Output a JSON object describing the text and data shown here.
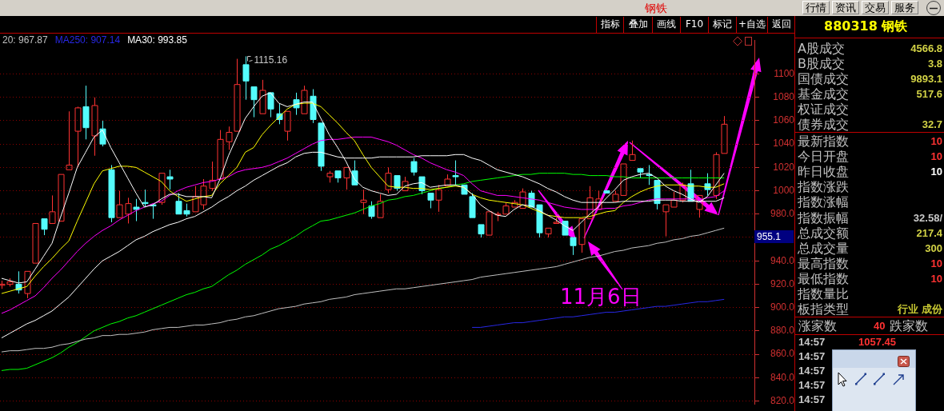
{
  "chart_data": [
    {
      "type": "candlestick",
      "title": "钢铁",
      "categories": [
        null,
        null,
        null,
        null,
        null,
        null,
        null,
        null,
        null,
        null,
        null,
        null,
        null,
        null,
        null,
        null,
        null,
        null,
        null,
        null,
        null,
        null,
        null,
        null,
        null,
        null,
        null,
        null,
        null,
        null,
        null,
        null,
        null,
        null,
        null,
        null,
        null,
        null,
        null,
        null,
        null,
        null,
        null,
        null,
        null,
        null,
        null,
        null,
        null,
        null,
        null,
        null,
        null,
        null,
        null,
        null,
        null,
        null,
        null,
        null,
        null,
        null,
        null,
        null,
        null,
        null,
        null,
        null,
        null,
        null,
        null,
        null,
        null,
        null,
        null,
        null,
        null,
        null,
        null,
        null,
        null,
        null,
        null,
        null,
        null,
        null,
        null
      ],
      "ohlc": [
        [
          919,
          923,
          916,
          920
        ],
        [
          920,
          925,
          918,
          922
        ],
        [
          920,
          931,
          912,
          915
        ],
        [
          912,
          931,
          908,
          931
        ],
        [
          938,
          972,
          938,
          972
        ],
        [
          976,
          976,
          962,
          967
        ],
        [
          972,
          996,
          972,
          982
        ],
        [
          974,
          1014,
          974,
          1014
        ],
        [
          1018,
          1068,
          1018,
          1022
        ],
        [
          1051,
          1072,
          1020,
          1071
        ],
        [
          1072,
          1090,
          1044,
          1054
        ],
        [
          1047,
          1080,
          1030,
          1073
        ],
        [
          1053,
          1060,
          1038,
          1040
        ],
        [
          1018,
          1022,
          973,
          977
        ],
        [
          977,
          1000,
          977,
          988
        ],
        [
          980,
          994,
          972,
          989
        ],
        [
          986,
          993,
          974,
          984
        ],
        [
          990,
          1001,
          986,
          989
        ],
        [
          988,
          988,
          976,
          987
        ],
        [
          990,
          1015,
          988,
          1015
        ],
        [
          1012,
          1018,
          1001,
          1010
        ],
        [
          991,
          998,
          980,
          980
        ],
        [
          983,
          989,
          978,
          980
        ],
        [
          982,
          1004,
          982,
          995
        ],
        [
          988,
          1010,
          984,
          1004
        ],
        [
          1002,
          1025,
          1000,
          1009
        ],
        [
          1010,
          1052,
          1010,
          1044
        ],
        [
          1042,
          1055,
          1035,
          1050
        ],
        [
          1051,
          1113,
          1051,
          1091
        ],
        [
          1108,
          1115.16,
          1078,
          1094
        ],
        [
          1089,
          1089,
          1063,
          1078
        ],
        [
          1066,
          1095,
          1066,
          1086
        ],
        [
          1084,
          1084,
          1063,
          1070
        ],
        [
          1066,
          1075,
          1057,
          1061
        ],
        [
          1051,
          1068,
          1043,
          1068
        ],
        [
          1078,
          1084,
          1065,
          1071
        ],
        [
          1066,
          1090,
          1066,
          1086
        ],
        [
          1081,
          1087,
          1058,
          1061
        ],
        [
          1058,
          1058,
          1017,
          1021
        ],
        [
          1012,
          1017,
          1007,
          1015
        ],
        [
          1017,
          1017,
          1007,
          1011
        ],
        [
          1011,
          1020,
          1001,
          1020
        ],
        [
          1017,
          1026,
          1005,
          1005
        ],
        [
          990,
          1001,
          980,
          992
        ],
        [
          987,
          991,
          976,
          978
        ],
        [
          977,
          997,
          977,
          991
        ],
        [
          1001,
          1020,
          998,
          1015
        ],
        [
          1013,
          1013,
          1000,
          1002
        ],
        [
          1000,
          1012,
          1000,
          1008
        ],
        [
          1025,
          1028,
          1013,
          1016
        ],
        [
          1012,
          1012,
          997,
          1000
        ],
        [
          998,
          998,
          985,
          992
        ],
        [
          992,
          1005,
          982,
          1001
        ],
        [
          1004,
          1014,
          1004,
          1010
        ],
        [
          1013,
          1026,
          1005,
          1012
        ],
        [
          1005,
          1005,
          997,
          997
        ],
        [
          995,
          998,
          977,
          977
        ],
        [
          971,
          971,
          960,
          963
        ],
        [
          962,
          982,
          962,
          982
        ],
        [
          979.5,
          982,
          974,
          980
        ],
        [
          980,
          990,
          980,
          987
        ],
        [
          986,
          992,
          986,
          990
        ],
        [
          985,
          1002,
          985,
          999
        ],
        [
          998,
          1000,
          986,
          986
        ],
        [
          988,
          988,
          960,
          964
        ],
        [
          963,
          968,
          960,
          968
        ],
        [
          972,
          977,
          972,
          973
        ],
        [
          974,
          974,
          962,
          962
        ],
        [
          960,
          960,
          945,
          953
        ],
        [
          954,
          976,
          947,
          976
        ],
        [
          976,
          1004,
          976,
          994
        ],
        [
          984,
          1000,
          984,
          993
        ],
        [
          1000,
          1000,
          998,
          998
        ],
        [
          991,
          1000,
          991,
          997
        ],
        [
          996,
          1023,
          996,
          1023
        ],
        [
          1026,
          1043,
          1026,
          1031
        ],
        [
          1019,
          1019,
          1011,
          1016
        ],
        [
          1014,
          1022,
          1005,
          1013
        ],
        [
          1009,
          1009,
          984,
          989
        ],
        [
          982,
          988,
          961,
          988
        ],
        [
          986,
          999,
          986,
          992
        ],
        [
          992,
          1007,
          990,
          1005
        ],
        [
          1006,
          1018,
          991,
          991
        ],
        [
          984,
          996,
          977,
          996
        ],
        [
          1006,
          1015,
          996,
          1001
        ],
        [
          996,
          1033,
          993,
          1031
        ],
        [
          1032,
          1064,
          1032,
          1057
        ]
      ],
      "colors": [
        "#ff3232",
        "#ff3232",
        "#54fcfc",
        "#ff3232",
        "#ff3232",
        "#54fcfc",
        "#ff3232",
        "#ff3232",
        "#ff3232",
        "#ff3232",
        "#54fcfc",
        "#ff3232",
        "#54fcfc",
        "#54fcfc",
        "#ff3232",
        "#ff3232",
        "#54fcfc",
        "#54fcfc",
        "#54fcfc",
        "#ff3232",
        "#54fcfc",
        "#54fcfc",
        "#54fcfc",
        "#ff3232",
        "#ff3232",
        "#ff3232",
        "#ff3232",
        "#ff3232",
        "#ff3232",
        "#54fcfc",
        "#54fcfc",
        "#ff3232",
        "#54fcfc",
        "#54fcfc",
        "#ff3232",
        "#54fcfc",
        "#ff3232",
        "#54fcfc",
        "#54fcfc",
        "#ff3232",
        "#54fcfc",
        "#ff3232",
        "#54fcfc",
        "#ff3232",
        "#54fcfc",
        "#ff3232",
        "#ff3232",
        "#54fcfc",
        "#ff3232",
        "#54fcfc",
        "#54fcfc",
        "#54fcfc",
        "#ff3232",
        "#ff3232",
        "#54fcfc",
        "#54fcfc",
        "#54fcfc",
        "#54fcfc",
        "#ff3232",
        "#ff3232",
        "#ff3232",
        "#ff3232",
        "#ff3232",
        "#54fcfc",
        "#54fcfc",
        "#ff3232",
        "#ff3232",
        "#54fcfc",
        "#54fcfc",
        "#ff3232",
        "#ff3232",
        "#ff3232",
        "#54fcfc",
        "#ff3232",
        "#ff3232",
        "#ff3232",
        "#54fcfc",
        "#54fcfc",
        "#54fcfc",
        "#ff3232",
        "#ff3232",
        "#ff3232",
        "#54fcfc",
        "#ff3232",
        "#54fcfc",
        "#ff3232",
        "#ff3232"
      ],
      "series": [
        {
          "type": "line",
          "name": "20: 967.87",
          "color": "#c0c0c0",
          "values": [
            862,
            863,
            863,
            864,
            865,
            865,
            866,
            868,
            869,
            871,
            873,
            874,
            876,
            876,
            877,
            877,
            878,
            879,
            881,
            882,
            883,
            883,
            884,
            885,
            885,
            886,
            887,
            889,
            890,
            892,
            893,
            895,
            897,
            899,
            900,
            901,
            903,
            904,
            905,
            907,
            908,
            909,
            911,
            912,
            913,
            914,
            915,
            916,
            916,
            917,
            918,
            919,
            920,
            921,
            922,
            923,
            924,
            926,
            927,
            928,
            929,
            930,
            931,
            932,
            933,
            934,
            935,
            937,
            939,
            941,
            943,
            944,
            946,
            948,
            949,
            951,
            952,
            953,
            955,
            956,
            958,
            959,
            961,
            962,
            964,
            966,
            968
          ]
        },
        {
          "type": "line",
          "name": "MA250: 907.14",
          "color": "#2828e6",
          "values": [
            null,
            null,
            null,
            null,
            null,
            null,
            null,
            null,
            null,
            null,
            null,
            null,
            null,
            null,
            null,
            null,
            null,
            null,
            null,
            null,
            null,
            null,
            null,
            null,
            null,
            null,
            null,
            null,
            null,
            null,
            null,
            null,
            null,
            null,
            null,
            null,
            null,
            null,
            null,
            null,
            null,
            null,
            null,
            null,
            null,
            null,
            null,
            null,
            null,
            null,
            null,
            null,
            null,
            null,
            null,
            null,
            883,
            883,
            884,
            885,
            886,
            887,
            887,
            888,
            889,
            890,
            891,
            892,
            892,
            893,
            894,
            895,
            896,
            896,
            897,
            898,
            899,
            900,
            901,
            901,
            902,
            903,
            904,
            905,
            905,
            906,
            907
          ]
        },
        {
          "type": "line",
          "name": "MA30: 993.85",
          "color": "#ffffff",
          "values": [
            874,
            878,
            882,
            886,
            889,
            893,
            897,
            903,
            909,
            917,
            925,
            933,
            940,
            944,
            948,
            953,
            958,
            961,
            965,
            968,
            971,
            973,
            976,
            978,
            982,
            986,
            991,
            995,
            1000,
            1004,
            1009,
            1013,
            1017,
            1021,
            1024,
            1029,
            1032,
            1033,
            1033,
            1031,
            1029,
            1028,
            1028,
            1028,
            1028,
            1029,
            1029,
            1029,
            1029,
            1029,
            1030,
            1030,
            1030,
            1030,
            1031,
            1031,
            1028,
            1026,
            1022,
            1018,
            1016,
            1014,
            1012,
            1009,
            1006,
            1002,
            999,
            995,
            992,
            990,
            990,
            990,
            990,
            990,
            991,
            991,
            991,
            991,
            992,
            992,
            992,
            991,
            991,
            991,
            991,
            991,
            994
          ]
        },
        {
          "type": "line",
          "color": "#ffffff",
          "values": [
            925,
            923,
            921,
            922,
            933,
            944,
            955,
            977,
            998,
            1020,
            1033,
            1046,
            1052,
            1037,
            1024,
            1011,
            998,
            986,
            988,
            993,
            997,
            997,
            995,
            995,
            995,
            994,
            1010,
            1030,
            1046,
            1062,
            1072,
            1081,
            1084,
            1075,
            1072,
            1074,
            1076,
            1076,
            1062,
            1048,
            1037,
            1025,
            1010,
            1003,
            1000,
            998,
            996,
            997,
            1004,
            1006,
            1007,
            1003,
            1004,
            1005,
            1005,
            1003,
            997,
            988,
            983,
            979,
            978,
            984,
            988,
            987,
            983,
            979,
            975,
            970,
            966,
            973,
            980,
            986,
            994,
            1001,
            1009,
            1012,
            1014,
            1015,
            1011,
            1004,
            1000,
            997,
            993,
            990,
            995,
            1005,
            1015
          ]
        },
        {
          "type": "line",
          "color": "#ffff00",
          "values": [
            912,
            914,
            916,
            918,
            927,
            935,
            942,
            950,
            957,
            974,
            990,
            1006,
            1017,
            1019,
            1021,
            1021,
            1020,
            1016,
            1012,
            1008,
            1000,
            995,
            991,
            993,
            995,
            996,
            1006,
            1013,
            1020,
            1033,
            1037,
            1048,
            1056,
            1063,
            1070,
            1074,
            1075,
            1075,
            1072,
            1065,
            1058,
            1050,
            1043,
            1031,
            1020,
            1012,
            1004,
            1003,
            1003,
            1002,
            1002,
            1001,
            1002,
            1003,
            1004,
            1003,
            997,
            994,
            992,
            991,
            990,
            989,
            988,
            985,
            982,
            979,
            978,
            977,
            977,
            977,
            978,
            980,
            982,
            983,
            990,
            995,
            999,
            1002,
            1004,
            1005,
            1005,
            1005,
            1004,
            1004,
            1003,
            1003,
            1006
          ]
        },
        {
          "type": "line",
          "color": "#ff00ff",
          "values": [
            895,
            898,
            902,
            906,
            910,
            917,
            925,
            932,
            940,
            948,
            955,
            961,
            966,
            970,
            975,
            979,
            983,
            986,
            989,
            991,
            996,
            1000,
            1003,
            1005,
            1007,
            1008,
            1010,
            1012,
            1016,
            1018,
            1019,
            1020,
            1022,
            1025,
            1028,
            1032,
            1036,
            1040,
            1043,
            1044,
            1044,
            1045,
            1046,
            1046,
            1046,
            1044,
            1042,
            1039,
            1035,
            1031,
            1028,
            1024,
            1021,
            1018,
            1016,
            1013,
            1006,
            1000,
            998,
            996,
            996,
            995,
            994,
            993,
            992,
            990,
            988,
            986,
            985,
            984,
            984,
            984,
            985,
            985,
            987,
            988,
            990,
            992,
            993,
            993,
            993,
            993,
            993,
            992,
            994,
            995,
            1000
          ]
        },
        {
          "type": "line",
          "color": "#00ff00",
          "values": [
            846,
            847,
            847,
            848,
            851,
            854,
            857,
            861,
            866,
            870,
            875,
            880,
            883,
            886,
            888,
            891,
            893,
            896,
            899,
            902,
            905,
            908,
            911,
            913,
            916,
            918,
            923,
            928,
            932,
            937,
            941,
            945,
            950,
            953,
            957,
            961,
            966,
            970,
            974,
            975,
            977,
            979,
            981,
            984,
            987,
            989,
            992,
            993,
            995,
            996,
            998,
            1000,
            1002,
            1003,
            1005,
            1006,
            1008,
            1009,
            1010,
            1011,
            1012,
            1013,
            1014,
            1014,
            1015,
            1015,
            1015,
            1015,
            1014,
            1014,
            1013,
            1013,
            1013,
            1012,
            1012,
            1011,
            1011,
            1011,
            1011,
            1011,
            1011,
            1011,
            1011,
            1011,
            1011,
            1011,
            1011
          ]
        }
      ],
      "ylim": [
        817,
        1129
      ],
      "yticks": [
        {
          "value": 820,
          "label": "820.0"
        },
        {
          "value": 840,
          "label": "840.0"
        },
        {
          "value": 860,
          "label": "860.0"
        },
        {
          "value": 880,
          "label": "880.0"
        },
        {
          "value": 900,
          "label": "900.0"
        },
        {
          "value": 920,
          "label": "920.0"
        },
        {
          "value": 940,
          "label": "940.0"
        },
        {
          "value": 960,
          "label": null
        },
        {
          "value": 980,
          "label": "980.0"
        },
        1000,
        1020,
        1040,
        1060,
        1080,
        1100
      ],
      "grid": "y",
      "annotations": [
        "1115.16",
        "11月6日",
        "955.1"
      ]
    },
    {
      "type": "other",
      "title": "880318 钢铁",
      "categories": [
        "A股成交",
        "B股成交",
        "国债成交",
        "基金成交",
        "权证成交",
        "债券成交",
        "最新指数",
        "今日开盘",
        "昨日收盘",
        "指数涨跌",
        "指数涨幅",
        "指数振幅",
        "总成交额",
        "总成交量",
        "最高指数",
        "最低指数",
        "指数量比",
        "板指类型"
      ],
      "value_labels": [
        "4566.8",
        "3.8",
        "9893.1",
        "517.6",
        null,
        "32.7",
        "10",
        "10",
        "10",
        null,
        null,
        "32.58/",
        "217.4",
        "300",
        "10",
        "10",
        null,
        "行业 成份"
      ],
      "colors": [
        "#d2d246",
        "#d2d246",
        "#d2d246",
        "#d2d246",
        null,
        "#d2d246",
        "#ff3232",
        "#ff3232",
        "#ffffff",
        null,
        null,
        "#c8c8c8",
        "#d2d246",
        "#d2d246",
        "#ff3232",
        "#ff3232",
        null,
        "#c8c832"
      ],
      "annotations": [
        "行情",
        "资讯",
        "交易",
        "服务",
        "指标",
        "叠加",
        "画线",
        "F10",
        "标记",
        "+自选",
        "返回",
        "涨家数",
        "40",
        "跌家数",
        "14:57",
        "1057.45",
        "14:57",
        "14:57",
        "14:57",
        "14:57"
      ]
    }
  ]
}
